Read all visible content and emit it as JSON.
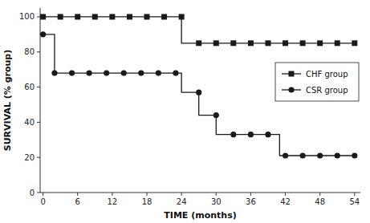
{
  "chart_data": {
    "type": "line",
    "xlabel": "TIME (months)",
    "ylabel": "SURVIVAL (% group)",
    "xlim": [
      -0.5,
      55
    ],
    "ylim": [
      0,
      105
    ],
    "xticks": [
      0,
      6,
      12,
      18,
      24,
      30,
      36,
      42,
      48,
      54
    ],
    "yticks": [
      0,
      20,
      40,
      60,
      80,
      100
    ],
    "legend": "right",
    "series": [
      {
        "name": "CHF group",
        "color": "#1a1a1a",
        "marker": "square",
        "line_style": "step",
        "x": [
          0,
          0,
          24,
          24,
          54
        ],
        "values": [
          100,
          100,
          100,
          85,
          85
        ],
        "marker_x": [
          0,
          3,
          6,
          9,
          12,
          15,
          18,
          21,
          24,
          27,
          30,
          33,
          36,
          39,
          42,
          45,
          48,
          51,
          54
        ],
        "marker_values": [
          100,
          100,
          100,
          100,
          100,
          100,
          100,
          100,
          100,
          85,
          85,
          85,
          85,
          85,
          85,
          85,
          85,
          85,
          85
        ]
      },
      {
        "name": "CSR group",
        "color": "#1a1a1a",
        "marker": "circle",
        "line_style": "step",
        "x": [
          0,
          2,
          2,
          5,
          5,
          24,
          24,
          27,
          27,
          30,
          30,
          33,
          33,
          41,
          41,
          54
        ],
        "values": [
          90,
          90,
          68,
          68,
          68,
          68,
          57,
          57,
          44,
          44,
          33,
          33,
          33,
          33,
          21,
          21
        ],
        "marker_x": [
          0,
          2,
          5,
          8,
          11,
          14,
          17,
          20,
          23,
          27,
          30,
          33,
          36,
          39,
          42,
          45,
          48,
          51,
          54
        ],
        "marker_values": [
          90,
          68,
          68,
          68,
          68,
          68,
          68,
          68,
          68,
          57,
          44,
          33,
          33,
          33,
          21,
          21,
          21,
          21,
          21
        ]
      }
    ]
  }
}
